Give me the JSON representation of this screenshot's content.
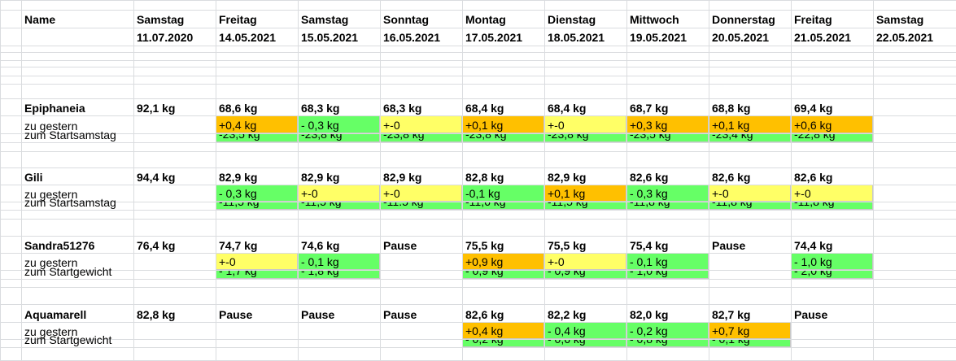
{
  "colors": {
    "orange": "#ffc000",
    "yellow": "#ffff66",
    "green": "#66ff66",
    "gridline": "#dadcdf"
  },
  "header": {
    "name_label": "Name",
    "days": [
      {
        "weekday": "Samstag",
        "date": "11.07.2020"
      },
      {
        "weekday": "Freitag",
        "date": "14.05.2021"
      },
      {
        "weekday": "Samstag",
        "date": "15.05.2021"
      },
      {
        "weekday": "Sonntag",
        "date": "16.05.2021"
      },
      {
        "weekday": "Montag",
        "date": "17.05.2021"
      },
      {
        "weekday": "Dienstag",
        "date": "18.05.2021"
      },
      {
        "weekday": "Mittwoch",
        "date": "19.05.2021"
      },
      {
        "weekday": "Donnerstag",
        "date": "20.05.2021"
      },
      {
        "weekday": "Freitag",
        "date": "21.05.2021"
      },
      {
        "weekday": "Samstag",
        "date": "22.05.2021"
      }
    ]
  },
  "groups": [
    {
      "name": "Epiphaneia",
      "weights": [
        "92,1 kg",
        "68,6 kg",
        "68,3 kg",
        "68,3 kg",
        "68,4 kg",
        "68,4 kg",
        "68,7 kg",
        "68,8 kg",
        "69,4 kg",
        ""
      ],
      "row2_label": "zu gestern",
      "row2": [
        {
          "t": "",
          "c": ""
        },
        {
          "t": "+0,4 kg",
          "c": "orange"
        },
        {
          "t": "- 0,3 kg",
          "c": "green"
        },
        {
          "t": "+-0",
          "c": "yellow"
        },
        {
          "t": "+0,1 kg",
          "c": "orange"
        },
        {
          "t": "+-0",
          "c": "yellow"
        },
        {
          "t": "+0,3 kg",
          "c": "orange"
        },
        {
          "t": "+0,1 kg",
          "c": "orange"
        },
        {
          "t": "+0,6 kg",
          "c": "orange"
        },
        {
          "t": "",
          "c": ""
        }
      ],
      "row3_label": "zum Startsamstag",
      "row3": [
        {
          "t": "",
          "c": ""
        },
        {
          "t": "-23,5 kg",
          "c": "green"
        },
        {
          "t": "-23,8 kg",
          "c": "green"
        },
        {
          "t": "-23,8 kg",
          "c": "green"
        },
        {
          "t": "-23,8 kg",
          "c": "green"
        },
        {
          "t": "-23,8 kg",
          "c": "green"
        },
        {
          "t": "-23,5 kg",
          "c": "green"
        },
        {
          "t": "-23,4 kg",
          "c": "green"
        },
        {
          "t": "-22,8 kg",
          "c": "green"
        },
        {
          "t": "",
          "c": ""
        }
      ]
    },
    {
      "name": "Gili",
      "weights": [
        "94,4 kg",
        "82,9 kg",
        "82,9 kg",
        "82,9 kg",
        "82,8 kg",
        "82,9 kg",
        "82,6 kg",
        "82,6 kg",
        "82,6 kg",
        ""
      ],
      "row2_label": "zu gestern",
      "row2": [
        {
          "t": "",
          "c": ""
        },
        {
          "t": "- 0,3 kg",
          "c": "green"
        },
        {
          "t": "+-0",
          "c": "yellow"
        },
        {
          "t": "+-0",
          "c": "yellow"
        },
        {
          "t": "-0,1 kg",
          "c": "green"
        },
        {
          "t": "+0,1 kg",
          "c": "orange"
        },
        {
          "t": "- 0,3 kg",
          "c": "green"
        },
        {
          "t": "+-0",
          "c": "yellow"
        },
        {
          "t": "+-0",
          "c": "yellow"
        },
        {
          "t": "",
          "c": ""
        }
      ],
      "row3_label": "zum Startsamstag",
      "row3": [
        {
          "t": "",
          "c": ""
        },
        {
          "t": "-11,5 kg",
          "c": "green"
        },
        {
          "t": "-11,5 kg",
          "c": "green"
        },
        {
          "t": "-11.5 kg",
          "c": "green"
        },
        {
          "t": "-11,6 kg",
          "c": "green"
        },
        {
          "t": "-11,5 kg",
          "c": "green"
        },
        {
          "t": "-11,8 kg",
          "c": "green"
        },
        {
          "t": "-11,8 kg",
          "c": "green"
        },
        {
          "t": "-11,8 kg",
          "c": "green"
        },
        {
          "t": "",
          "c": ""
        }
      ]
    },
    {
      "name": "Sandra51276",
      "weights": [
        "76,4 kg",
        "74,7 kg",
        "74,6 kg",
        "Pause",
        "75,5 kg",
        "75,5 kg",
        "75,4 kg",
        "Pause",
        "74,4 kg",
        ""
      ],
      "row2_label": "zu gestern",
      "row2": [
        {
          "t": "",
          "c": ""
        },
        {
          "t": "+-0",
          "c": "yellow"
        },
        {
          "t": "- 0,1 kg",
          "c": "green"
        },
        {
          "t": "",
          "c": ""
        },
        {
          "t": "+0,9 kg",
          "c": "orange"
        },
        {
          "t": "+-0",
          "c": "yellow"
        },
        {
          "t": "- 0,1 kg",
          "c": "green"
        },
        {
          "t": "",
          "c": ""
        },
        {
          "t": "- 1,0 kg",
          "c": "green"
        },
        {
          "t": "",
          "c": ""
        }
      ],
      "row3_label": "zum Startgewicht",
      "row3": [
        {
          "t": "",
          "c": ""
        },
        {
          "t": "- 1,7 kg",
          "c": "green"
        },
        {
          "t": "- 1,8 kg",
          "c": "green"
        },
        {
          "t": "",
          "c": ""
        },
        {
          "t": "- 0,9 kg",
          "c": "green"
        },
        {
          "t": "- 0,9 kg",
          "c": "green"
        },
        {
          "t": "- 1,0 kg",
          "c": "green"
        },
        {
          "t": "",
          "c": ""
        },
        {
          "t": "- 2,0 kg",
          "c": "green"
        },
        {
          "t": "",
          "c": ""
        }
      ]
    },
    {
      "name": "Aquamarell",
      "weights": [
        "82,8 kg",
        "Pause",
        "Pause",
        "Pause",
        "82,6 kg",
        "82,2 kg",
        "82,0 kg",
        "82,7 kg",
        "Pause",
        ""
      ],
      "row2_label": "zu gestern",
      "row2": [
        {
          "t": "",
          "c": ""
        },
        {
          "t": "",
          "c": ""
        },
        {
          "t": "",
          "c": ""
        },
        {
          "t": "",
          "c": ""
        },
        {
          "t": "+0,4 kg",
          "c": "orange"
        },
        {
          "t": "- 0,4 kg",
          "c": "green"
        },
        {
          "t": "- 0,2 kg",
          "c": "green"
        },
        {
          "t": "+0,7 kg",
          "c": "orange"
        },
        {
          "t": "",
          "c": ""
        },
        {
          "t": "",
          "c": ""
        }
      ],
      "row3_label": "zum Startgewicht",
      "row3": [
        {
          "t": "",
          "c": ""
        },
        {
          "t": "",
          "c": ""
        },
        {
          "t": "",
          "c": ""
        },
        {
          "t": "",
          "c": ""
        },
        {
          "t": "- 0,2 kg",
          "c": "green"
        },
        {
          "t": "- 0,6 kg",
          "c": "green"
        },
        {
          "t": "- 0,8 kg",
          "c": "green"
        },
        {
          "t": "- 0,1 kg",
          "c": "green"
        },
        {
          "t": "",
          "c": ""
        },
        {
          "t": "",
          "c": ""
        }
      ]
    }
  ]
}
